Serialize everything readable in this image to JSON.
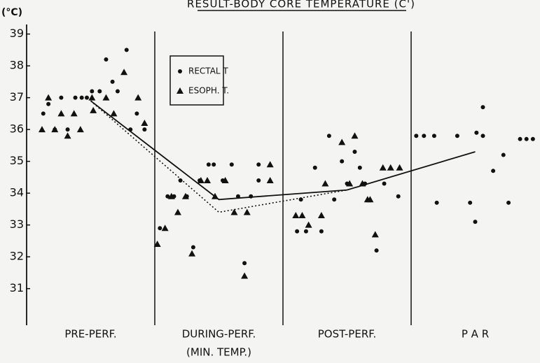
{
  "chart_data": {
    "type": "scatter",
    "title": "RESULT-BODY CORE TEMPERATURE (C')",
    "y_label": "(°C)",
    "categories": [
      [
        "PRE-PERF."
      ],
      [
        "DURING-PERF.",
        "(MIN. TEMP.)"
      ],
      [
        "POST-PERF."
      ],
      [
        "P A R"
      ]
    ],
    "xlim": [
      0,
      4
    ],
    "ylim": [
      29.85,
      39.3
    ],
    "yticks": [
      31,
      32,
      33,
      34,
      35,
      36,
      37,
      38,
      39
    ],
    "series": [
      {
        "name": "RECTAL T",
        "marker": "circle",
        "color": "#111111",
        "x": [
          0.13,
          0.17,
          0.22,
          0.27,
          0.32,
          0.38,
          0.43,
          0.47,
          0.51,
          0.57,
          0.62,
          0.67,
          0.71,
          0.78,
          0.81,
          0.86,
          0.92,
          1.04,
          1.1,
          1.15,
          1.2,
          1.25,
          1.3,
          1.35,
          1.42,
          1.46,
          1.53,
          1.6,
          1.65,
          1.7,
          1.75,
          1.81,
          1.81,
          2.11,
          2.14,
          2.18,
          2.25,
          2.3,
          2.36,
          2.4,
          2.46,
          2.5,
          2.56,
          2.6,
          2.64,
          2.73,
          2.79,
          2.9,
          3.04,
          3.1,
          3.18,
          3.2,
          3.36,
          3.46,
          3.51,
          3.56,
          3.5,
          3.56,
          3.64,
          3.72,
          3.76,
          3.85,
          3.9,
          3.95
        ],
        "values": [
          36.5,
          36.8,
          36.0,
          37.0,
          36.0,
          37.0,
          37.0,
          37.0,
          37.2,
          37.2,
          38.2,
          37.5,
          37.2,
          38.5,
          36.0,
          36.5,
          36.0,
          32.9,
          33.9,
          33.9,
          34.4,
          33.9,
          32.3,
          34.4,
          34.9,
          34.9,
          34.4,
          34.9,
          33.9,
          31.8,
          33.9,
          34.9,
          34.4,
          32.8,
          33.8,
          32.8,
          34.8,
          32.8,
          35.8,
          33.8,
          35.0,
          34.3,
          35.3,
          34.8,
          34.3,
          32.2,
          34.3,
          33.9,
          35.8,
          35.8,
          35.8,
          33.7,
          35.8,
          33.7,
          35.9,
          35.8,
          33.1,
          36.7,
          34.7,
          35.2,
          33.7,
          35.7,
          35.7,
          35.7
        ]
      },
      {
        "name": "ESOPH. T.",
        "marker": "triangle",
        "color": "#111111",
        "x": [
          0.12,
          0.17,
          0.22,
          0.27,
          0.32,
          0.37,
          0.42,
          0.51,
          0.52,
          0.62,
          0.68,
          0.76,
          0.87,
          0.92,
          1.02,
          1.08,
          1.13,
          1.18,
          1.24,
          1.29,
          1.36,
          1.41,
          1.47,
          1.55,
          1.62,
          1.7,
          1.72,
          1.9,
          1.9,
          2.1,
          2.15,
          2.2,
          2.3,
          2.33,
          2.46,
          2.52,
          2.56,
          2.62,
          2.66,
          2.68,
          2.72,
          2.78,
          2.84,
          2.91
        ],
        "values": [
          36.0,
          37.0,
          36.0,
          36.5,
          35.8,
          36.5,
          36.0,
          37.0,
          36.6,
          37.0,
          36.5,
          37.8,
          37.0,
          36.2,
          32.4,
          32.9,
          33.9,
          33.4,
          33.9,
          32.1,
          34.4,
          34.4,
          33.9,
          34.4,
          33.4,
          31.4,
          33.4,
          34.9,
          34.4,
          33.3,
          33.3,
          33.0,
          33.3,
          34.3,
          35.6,
          34.3,
          35.8,
          34.3,
          33.8,
          33.8,
          32.7,
          34.8,
          34.8,
          34.8
        ]
      },
      {
        "marker": "none",
        "style": "solid",
        "color": "#111111",
        "x": [
          0.5,
          1.5,
          2.5,
          3.5
        ],
        "values": [
          36.9,
          33.8,
          34.1,
          35.3
        ]
      },
      {
        "marker": "none",
        "style": "dotted",
        "color": "#111111",
        "x": [
          0.5,
          1.5,
          2.5
        ],
        "values": [
          36.9,
          33.4,
          34.1
        ]
      }
    ]
  }
}
